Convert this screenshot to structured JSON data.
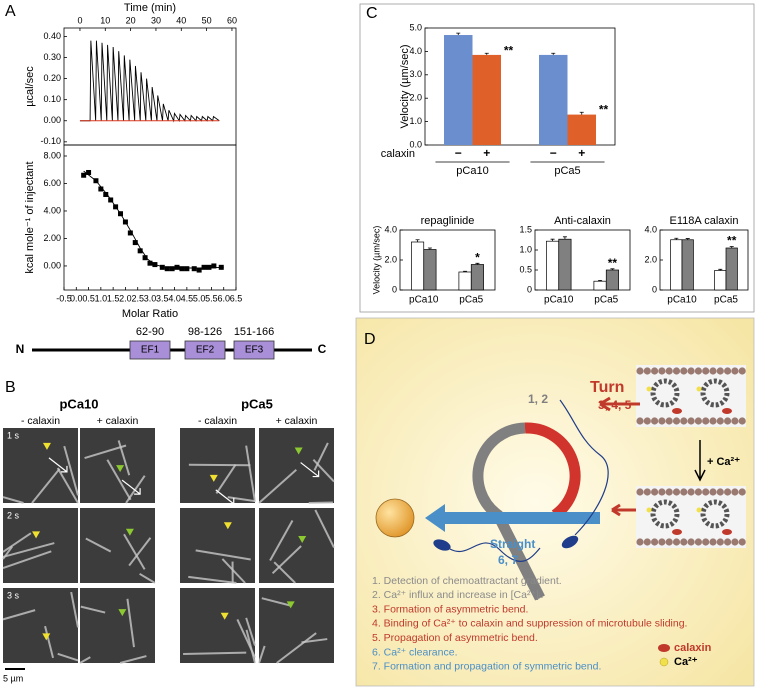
{
  "panel_labels": [
    "A",
    "B",
    "C",
    "D"
  ],
  "chart_data": [
    {
      "type": "line",
      "xlabel": "Time (min)",
      "ylabel": "µcal/sec",
      "xlim": [
        -6.3,
        61.6
      ],
      "ylim": [
        -0.115,
        0.44
      ],
      "xticks": [
        0,
        10,
        20,
        30,
        40,
        50,
        60
      ],
      "yticks": [
        {
          "value": -0.1,
          "label": "-0.10"
        },
        {
          "value": 0,
          "label": "0.00"
        },
        {
          "value": 0.1,
          "label": "0.10"
        },
        {
          "value": 0.2,
          "label": "0.20"
        },
        {
          "value": 0.3,
          "label": "0.30"
        },
        {
          "value": 0.4,
          "label": "0.40"
        }
      ],
      "series": [
        {
          "color": "#000000",
          "x": [
            0,
            4.0,
            4.3,
            6.2,
            6.5,
            8.4,
            8.7,
            10.6,
            10.9,
            12.8,
            13.1,
            15.0,
            15.3,
            17.2,
            17.5,
            19.4,
            19.7,
            21.6,
            21.9,
            23.8,
            24.1,
            26.0,
            26.3,
            28.2,
            28.5,
            30.4,
            30.7,
            32.6,
            32.9,
            34.8,
            35.1,
            37.0,
            37.3,
            39.2,
            39.5,
            41.4,
            41.7,
            43.6,
            43.9,
            45.8,
            46.1,
            48.0,
            48.3,
            50.2,
            50.5,
            52.4,
            52.7,
            55.0
          ],
          "values": [
            0,
            0,
            0.38,
            0,
            0.38,
            0,
            0.37,
            0,
            0.36,
            0,
            0.35,
            0,
            0.33,
            0,
            0.31,
            0,
            0.29,
            0,
            0.26,
            0,
            0.23,
            0,
            0.2,
            0,
            0.16,
            0,
            0.12,
            0,
            0.08,
            0,
            0.05,
            0,
            0.035,
            0,
            0.03,
            0,
            0.025,
            0,
            0.025,
            0,
            0.02,
            0,
            0.02,
            0,
            0.02,
            0,
            0.02,
            0
          ]
        },
        {
          "color": "#d9381e",
          "x": [
            0,
            55.0
          ],
          "values": [
            0,
            0
          ]
        }
      ]
    },
    {
      "type": "scatter",
      "xlabel": "Molar Ratio",
      "ylabel": "kcal mole⁻¹ of injectant",
      "xlim": [
        -0.5,
        6.5
      ],
      "ylim": [
        -1.75,
        8.8
      ],
      "xticks": [
        -0.5,
        {
          "value": 0,
          "label": "0.0"
        },
        0.5,
        {
          "value": 1,
          "label": "1.0"
        },
        1.5,
        {
          "value": 2,
          "label": "2.0"
        },
        2.5,
        {
          "value": 3,
          "label": "3.0"
        },
        3.5,
        {
          "value": 4,
          "label": "4.0"
        },
        4.5,
        {
          "value": 5,
          "label": "5.0"
        },
        5.5,
        {
          "value": 6,
          "label": "6.0"
        },
        6.5
      ],
      "yticks": [
        {
          "value": 0,
          "label": "0.00"
        },
        {
          "value": 2,
          "label": "2.00"
        },
        {
          "value": 4,
          "label": "4.00"
        },
        {
          "value": 6,
          "label": "6.00"
        },
        {
          "value": 8,
          "label": "8.00"
        }
      ],
      "series": [
        {
          "color": "#000000",
          "x": [
            0.3,
            0.5,
            0.8,
            1.0,
            1.2,
            1.4,
            1.6,
            1.8,
            2.0,
            2.2,
            2.4,
            2.6,
            2.8,
            3.0,
            3.2,
            3.5,
            3.7,
            3.9,
            4.1,
            4.3,
            4.5,
            4.8,
            5.0,
            5.2,
            5.4,
            5.6,
            5.9
          ],
          "values": [
            6.6,
            6.8,
            6.2,
            5.6,
            5.2,
            4.8,
            4.3,
            3.8,
            3.2,
            2.4,
            1.7,
            1.1,
            0.6,
            0.2,
            0.1,
            -0.1,
            -0.2,
            -0.2,
            -0.1,
            -0.2,
            -0.2,
            -0.2,
            -0.3,
            -0.1,
            -0.1,
            0.0,
            -0.1
          ]
        }
      ],
      "fit": {
        "color": "#000000",
        "x": [
          0.3,
          0.8,
          1.3,
          1.8,
          2.2,
          2.6,
          2.9,
          3.2,
          3.6,
          4.2,
          5.0,
          6.0
        ],
        "values": [
          6.9,
          6.2,
          5.1,
          3.8,
          2.6,
          1.3,
          0.5,
          0.1,
          -0.1,
          -0.15,
          -0.15,
          -0.1
        ]
      }
    },
    {
      "type": "bar",
      "ylabel": "Velocity (µm/sec)",
      "row_label": "calaxin",
      "ylim": [
        0,
        5
      ],
      "yticks": [
        {
          "value": 0,
          "label": "0.0"
        },
        {
          "value": 1,
          "label": "1.0"
        },
        {
          "value": 2,
          "label": "2.0"
        },
        {
          "value": 3,
          "label": "3.0"
        },
        {
          "value": 4,
          "label": "4.0"
        },
        {
          "value": 5,
          "label": "5.0"
        }
      ],
      "categories": [
        "pCa10",
        "pCa5"
      ],
      "series": [
        {
          "name": "−",
          "color": "#6b8fce",
          "values": [
            4.7,
            3.85
          ],
          "errors": [
            0.08,
            0.07
          ]
        },
        {
          "name": "+",
          "color": "#e0602a",
          "values": [
            3.85,
            1.3
          ],
          "errors": [
            0.07,
            0.1
          ],
          "significance": [
            "**",
            "**"
          ]
        }
      ]
    },
    {
      "type": "bar",
      "title": "repaglinide",
      "ylabel": "Velocity (µm/sec)",
      "ylim": [
        0,
        4
      ],
      "yticks": [
        0,
        {
          "value": 2,
          "label": "2.0"
        },
        {
          "value": 4,
          "label": "4.0"
        }
      ],
      "categories": [
        "pCa10",
        "pCa5"
      ],
      "series": [
        {
          "color": "#ffffff",
          "values": [
            3.2,
            1.2
          ],
          "errors": [
            0.15,
            0.05
          ]
        },
        {
          "color": "#808080",
          "values": [
            2.7,
            1.7
          ],
          "errors": [
            0.1,
            0.08
          ],
          "significance": [
            null,
            "*"
          ]
        }
      ]
    },
    {
      "type": "bar",
      "title": "Anti-calaxin",
      "ylim": [
        0,
        1.5
      ],
      "yticks": [
        0,
        0.5,
        {
          "value": 1,
          "label": "1.0"
        },
        1.5
      ],
      "categories": [
        "pCa10",
        "pCa5"
      ],
      "series": [
        {
          "color": "#ffffff",
          "values": [
            1.22,
            0.22
          ],
          "errors": [
            0.05,
            0.02
          ]
        },
        {
          "color": "#808080",
          "values": [
            1.27,
            0.5
          ],
          "errors": [
            0.06,
            0.03
          ],
          "significance": [
            null,
            "**"
          ]
        }
      ]
    },
    {
      "type": "bar",
      "title": "E118A calaxin",
      "ylim": [
        0,
        4
      ],
      "yticks": [
        0,
        {
          "value": 2,
          "label": "2.0"
        },
        {
          "value": 4,
          "label": "4.0"
        }
      ],
      "categories": [
        "pCa10",
        "pCa5"
      ],
      "series": [
        {
          "color": "#ffffff",
          "values": [
            3.35,
            1.3
          ],
          "errors": [
            0.1,
            0.08
          ]
        },
        {
          "color": "#808080",
          "values": [
            3.35,
            2.8
          ],
          "errors": [
            0.08,
            0.1
          ],
          "significance": [
            null,
            "**"
          ]
        }
      ]
    }
  ],
  "domain_map": {
    "n_label": "N",
    "c_label": "C",
    "domains": [
      {
        "name": "EF1",
        "range": "62-90"
      },
      {
        "name": "EF2",
        "range": "98-126"
      },
      {
        "name": "EF3",
        "range": "151-166"
      }
    ]
  },
  "micrographs": {
    "conditions": [
      {
        "title": "pCa10",
        "columns": [
          "- calaxin",
          "+ calaxin"
        ]
      },
      {
        "title": "pCa5",
        "columns": [
          "- calaxin",
          "+ calaxin"
        ]
      }
    ],
    "times": [
      "1 s",
      "2 s",
      "3 s"
    ],
    "scale_bar": "5 µm"
  },
  "model": {
    "turn": "Turn",
    "turn_steps": "3, 4, 5",
    "initial_steps": "1, 2",
    "straight": "Straight",
    "straight_steps": "6, 7",
    "calcium_addition": "+ Ca²⁺",
    "legend": [
      "calaxin",
      "Ca²⁺"
    ],
    "steps": [
      {
        "text": "1. Detection of chemoattractant gradient.",
        "color": "#8a8a8a"
      },
      {
        "text": "2. Ca²⁺ influx and increase in [Ca²⁺]ᵢ.",
        "color": "#8a8a8a"
      },
      {
        "text": "3. Formation of asymmetric bend.",
        "color": "#c0392b"
      },
      {
        "text": "4. Binding of Ca²⁺ to calaxin and suppression of microtubule sliding.",
        "color": "#c0392b"
      },
      {
        "text": "5. Propagation of asymmetric bend.",
        "color": "#c0392b"
      },
      {
        "text": "6. Ca²⁺ clearance.",
        "color": "#4a8fc8"
      },
      {
        "text": "7. Formation and propagation of symmetric bend.",
        "color": "#4a8fc8"
      }
    ]
  }
}
